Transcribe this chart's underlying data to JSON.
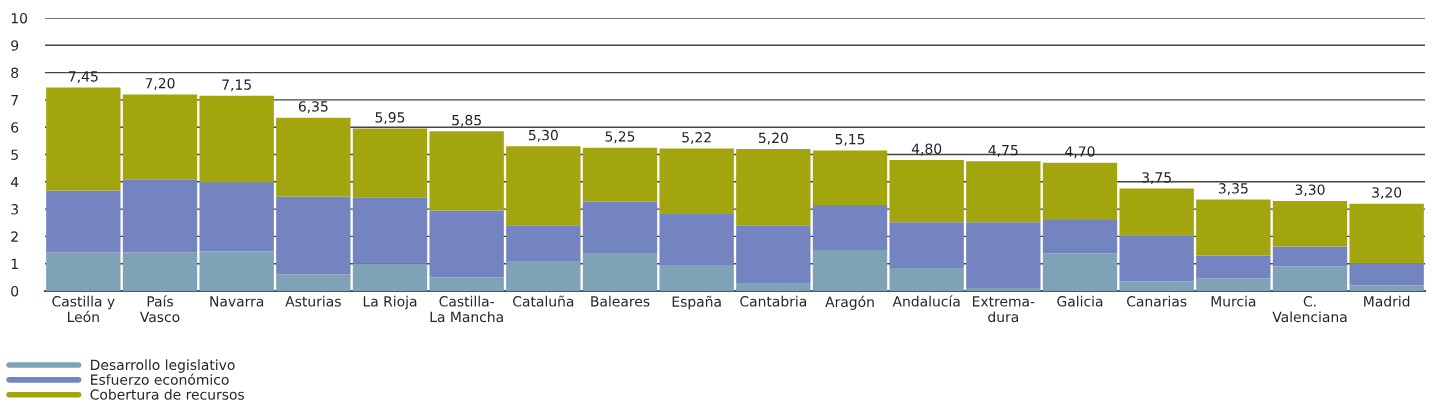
{
  "chart_data": {
    "type": "bar",
    "stacked": true,
    "categories": [
      "Castilla y\nLeón",
      "País\nVasco",
      "Navarra",
      "Asturias",
      "La Rioja",
      "Castilla-\nLa Mancha",
      "Cataluña",
      "Baleares",
      "España",
      "Cantabria",
      "Aragón",
      "Andalucía",
      "Extrema-\ndura",
      "Galicia",
      "Canarias",
      "Murcia",
      "C.\nValenciana",
      "Madrid"
    ],
    "series": [
      {
        "name": "Desarrollo legislativo",
        "color": "#7fa2b6",
        "values": [
          1.41,
          1.41,
          1.45,
          0.61,
          1.01,
          0.5,
          1.1,
          1.39,
          0.95,
          0.29,
          1.5,
          0.84,
          0.11,
          1.38,
          0.35,
          0.46,
          0.9,
          0.21
        ]
      },
      {
        "name": "Esfuerzo económico",
        "color": "#7484c0",
        "values": [
          2.27,
          2.68,
          2.53,
          2.85,
          2.42,
          2.45,
          1.31,
          1.88,
          1.87,
          2.12,
          1.65,
          1.68,
          2.41,
          1.22,
          1.69,
          0.84,
          0.73,
          0.79
        ]
      },
      {
        "name": "Cobertura de recursos",
        "color": "#a3a50f",
        "values": [
          3.77,
          3.11,
          3.17,
          2.89,
          2.52,
          2.9,
          2.89,
          1.98,
          2.4,
          2.79,
          2.0,
          2.28,
          2.23,
          2.1,
          1.71,
          2.05,
          1.67,
          2.2
        ]
      }
    ],
    "totals": [
      "7,45",
      "7,20",
      "7,15",
      "6,35",
      "5,95",
      "5,85",
      "5,30",
      "5,25",
      "5,22",
      "5,20",
      "5,15",
      "4,80",
      "4,75",
      "4,70",
      "3,75",
      "3,35",
      "3,30",
      "3,20"
    ],
    "ylim": [
      0,
      10
    ],
    "yticks": [
      0,
      1,
      2,
      3,
      4,
      5,
      6,
      7,
      8,
      9,
      10
    ],
    "grid": "y",
    "legend": "bottom left"
  }
}
